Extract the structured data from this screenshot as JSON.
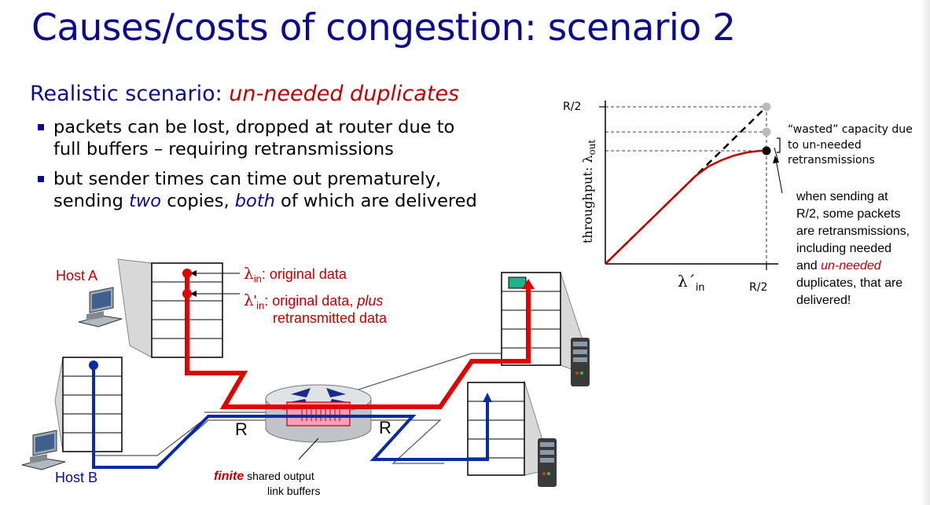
{
  "title": "Causes/costs of congestion: scenario 2",
  "subtitle": {
    "prefix": "Realistic scenario: ",
    "highlight": "un-needed duplicates"
  },
  "bullets": [
    {
      "line1": "packets can be lost, dropped at router due  to",
      "line2": "full buffers – requiring retransmissions"
    },
    {
      "line1": "but sender times can time out prematurely,",
      "line2a": "sending ",
      "two": "two",
      "line2b": " copies, ",
      "both": "both",
      "line2c": " of which are delivered"
    }
  ],
  "diagram": {
    "host_a": "Host A",
    "host_b": "Host B",
    "lambda_in_label": ": original data",
    "lambda_in_prime_label_1": ": original data, ",
    "lambda_in_prime_plus": "plus",
    "lambda_in_prime_label_2": "retransmitted data",
    "router_label_left": "R",
    "router_label_right": "R",
    "finite": "finite",
    "buffers_1": " shared output",
    "buffers_2": "link buffers"
  },
  "chart_data": {
    "type": "line",
    "ylabel": "throughput: λ",
    "ylabel_sub": "out",
    "xlabel": "λ´",
    "xlabel_sub": "in",
    "x_tick": "R/2",
    "y_tick": "R/2",
    "xlim": [
      0,
      0.5
    ],
    "ylim": [
      0,
      0.5
    ],
    "series": [
      {
        "style": "dashed",
        "color": "#000000",
        "x": [
          0,
          0.5
        ],
        "y": [
          0,
          0.5
        ]
      },
      {
        "style": "solid",
        "color": "#c00000",
        "x": [
          0,
          0.07,
          0.14,
          0.21,
          0.28,
          0.32,
          0.36,
          0.4,
          0.44,
          0.48,
          0.5
        ],
        "y": [
          0,
          0.07,
          0.14,
          0.21,
          0.28,
          0.31,
          0.33,
          0.345,
          0.355,
          0.36,
          0.36
        ]
      }
    ],
    "markers": [
      {
        "x": 0.5,
        "y": 0.5,
        "color": "#bbbbbb"
      },
      {
        "x": 0.5,
        "y": 0.42,
        "color": "#bbbbbb"
      },
      {
        "x": 0.5,
        "y": 0.36,
        "color": "#000000"
      }
    ],
    "annotation_wasted": [
      "“wasted” capacity due",
      "to un-needed",
      "retransmissions"
    ],
    "annotation_side": {
      "l1": "when sending at",
      "l2": "R/2, some packets",
      "l3": "are retransmissions,",
      "l4": "including needed",
      "l5a": "and ",
      "l5b": "un-needed",
      "l6": "duplicates, that are",
      "l7": "delivered!"
    }
  }
}
